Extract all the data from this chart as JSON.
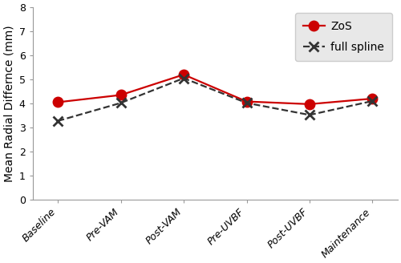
{
  "categories": [
    "Baseline",
    "Pre-VAM",
    "Post-VAM",
    "Pre-UVBF",
    "Post-UVBF",
    "Maintenance"
  ],
  "zos_values": [
    4.05,
    4.35,
    5.2,
    4.08,
    3.97,
    4.2
  ],
  "full_spline_values": [
    3.27,
    4.02,
    5.05,
    4.02,
    3.52,
    4.1
  ],
  "zos_color": "#cc0000",
  "full_spline_color": "#333333",
  "ylabel": "Mean Radial Differnce (mm)",
  "ylim": [
    0,
    8
  ],
  "yticks": [
    0,
    1,
    2,
    3,
    4,
    5,
    6,
    7,
    8
  ],
  "legend_zos": "ZoS",
  "legend_full_spline": "full spline",
  "legend_bg": "#e8e8e8",
  "zos_marker": "o",
  "full_spline_marker": "x",
  "zos_markersize": 9,
  "full_spline_markersize": 9,
  "linewidth": 1.6,
  "tick_labelsize": 9,
  "ylabel_fontsize": 10,
  "legend_fontsize": 10,
  "bg_color": "#ffffff"
}
